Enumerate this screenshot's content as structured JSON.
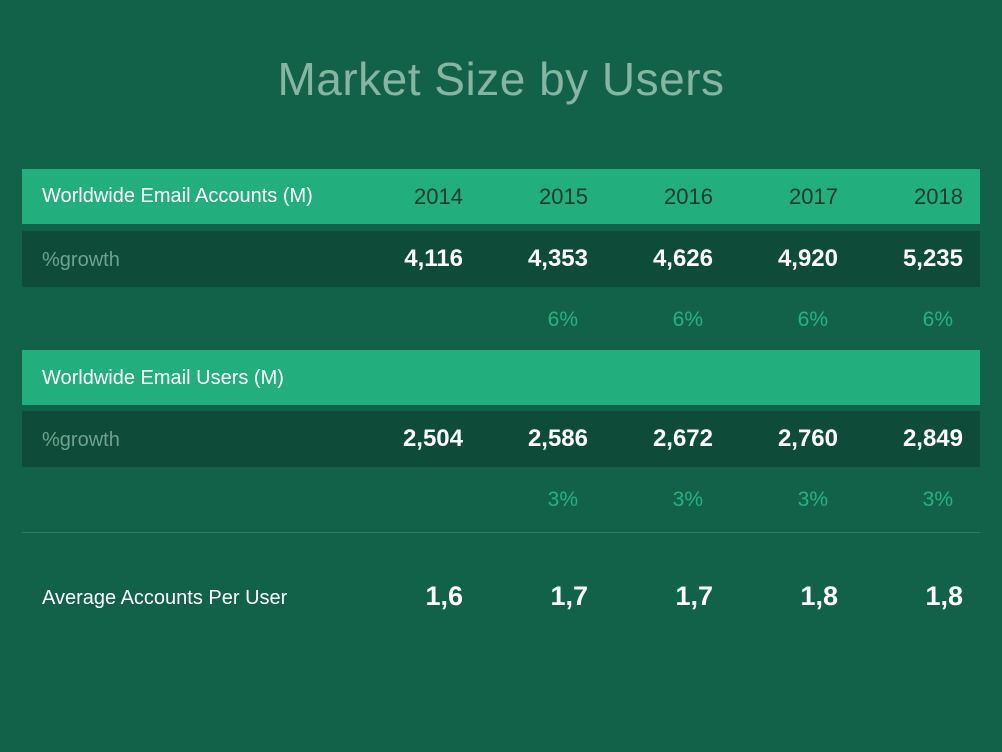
{
  "title": "Market Size by Users",
  "chart_data": {
    "type": "table",
    "title": "Market Size by Users",
    "columns": [
      "2014",
      "2015",
      "2016",
      "2017",
      "2018"
    ],
    "rows": [
      {
        "header": "Worldwide Email Accounts (M)",
        "label": "%growth",
        "values": [
          "4,116",
          "4,353",
          "4,626",
          "4,920",
          "5,235"
        ],
        "growth": [
          "",
          "6%",
          "6%",
          "6%",
          "6%"
        ]
      },
      {
        "header": "Worldwide Email Users (M)",
        "label": "%growth",
        "values": [
          "2,504",
          "2,586",
          "2,672",
          "2,760",
          "2,849"
        ],
        "growth": [
          "",
          "3%",
          "3%",
          "3%",
          "3%"
        ]
      },
      {
        "label": "Average Accounts Per User",
        "values": [
          "1,6",
          "1,7",
          "1,7",
          "1,8",
          "1,8"
        ]
      }
    ]
  },
  "colors": {
    "background": "#12624a",
    "header_band": "#22ae7d",
    "value_band": "#0e4c39",
    "growth_text": "#28b27f",
    "title_text": "#86b5a1"
  }
}
